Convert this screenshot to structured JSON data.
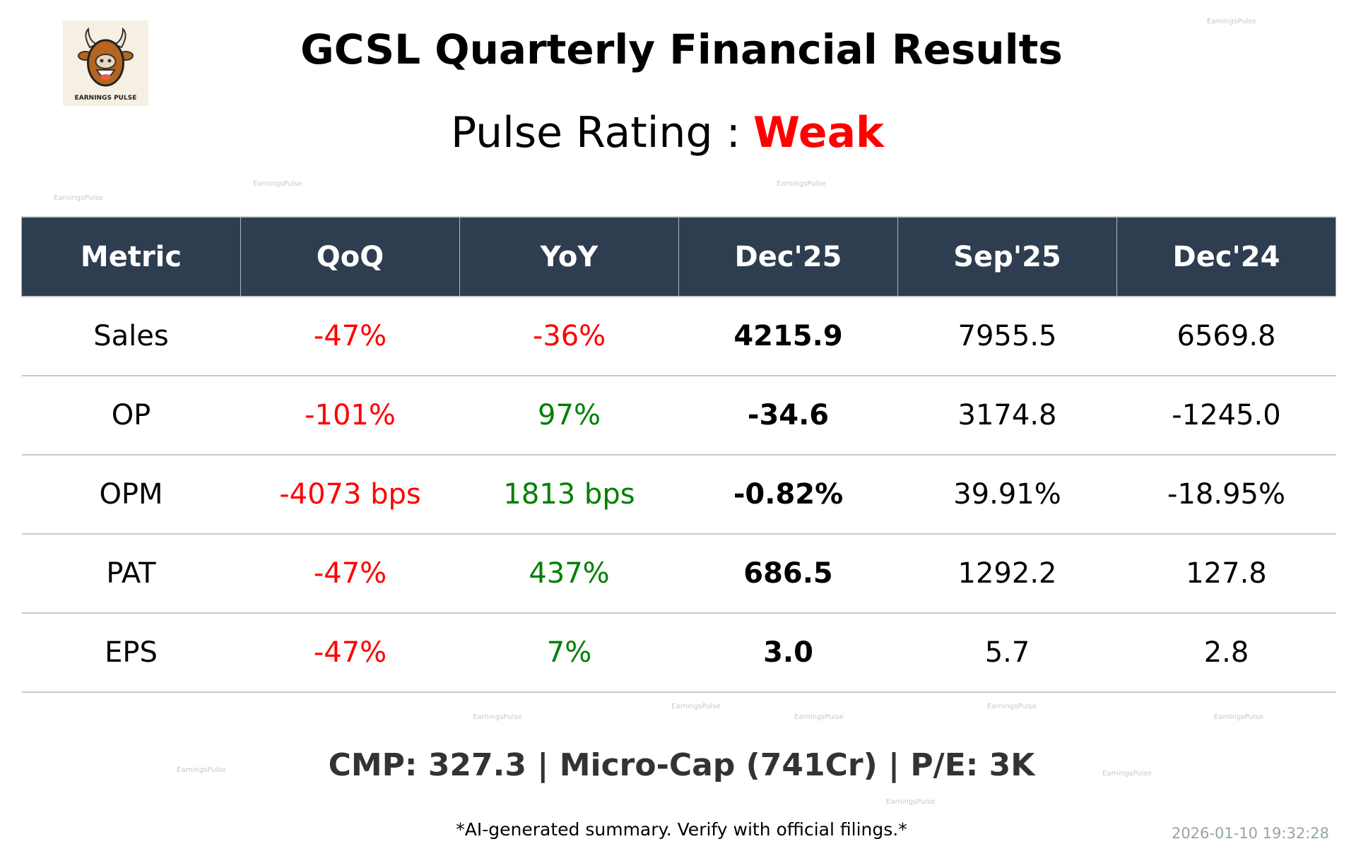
{
  "logo": {
    "text": "EARNINGS PULSE"
  },
  "title": "GCSL Quarterly Financial Results",
  "pulse_rating": {
    "label": "Pulse Rating :",
    "value": "Weak",
    "color": "#ff0000"
  },
  "table": {
    "headers": [
      "Metric",
      "QoQ",
      "YoY",
      "Dec'25",
      "Sep'25",
      "Dec'24"
    ],
    "rows": [
      {
        "metric": "Sales",
        "qoq": "-47%",
        "yoy": "-36%",
        "dec25": "4215.9",
        "sep25": "7955.5",
        "dec24": "6569.8"
      },
      {
        "metric": "OP",
        "qoq": "-101%",
        "yoy": "97%",
        "dec25": "-34.6",
        "sep25": "3174.8",
        "dec24": "-1245.0"
      },
      {
        "metric": "OPM",
        "qoq": "-4073 bps",
        "yoy": "1813 bps",
        "dec25": "-0.82%",
        "sep25": "39.91%",
        "dec24": "-18.95%"
      },
      {
        "metric": "PAT",
        "qoq": "-47%",
        "yoy": "437%",
        "dec25": "686.5",
        "sep25": "1292.2",
        "dec24": "127.8"
      },
      {
        "metric": "EPS",
        "qoq": "-47%",
        "yoy": "7%",
        "dec25": "3.0",
        "sep25": "5.7",
        "dec24": "2.8"
      }
    ]
  },
  "colors": {
    "header_bg": "#2e3e50",
    "negative": "#ff0000",
    "positive": "#008000"
  },
  "cmp_line": "CMP: 327.3 | Micro-Cap (741Cr) | P/E: 3K",
  "disclaimer": "*AI-generated summary. Verify with official filings.*",
  "timestamp": "2026-01-10 19:32:28",
  "watermark": "EarningsPulse"
}
